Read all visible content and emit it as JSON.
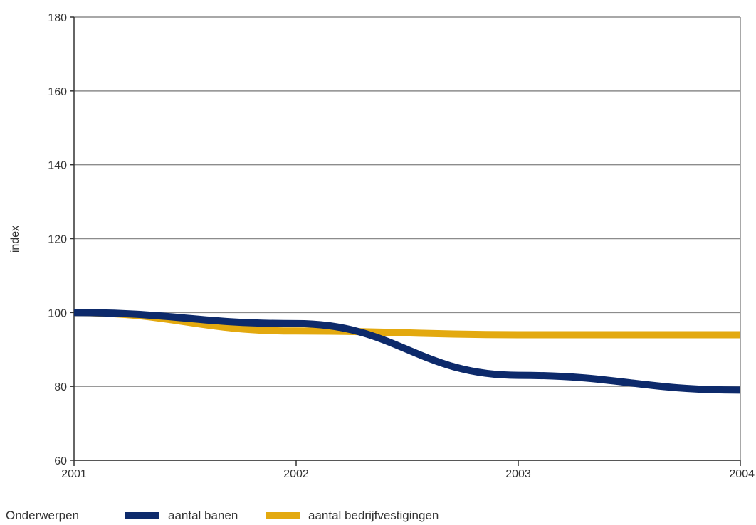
{
  "chart_data": {
    "type": "line",
    "title": "",
    "xlabel": "",
    "ylabel": "index",
    "x": [
      2001,
      2002,
      2003,
      2004
    ],
    "x_tick_labels": [
      "2001",
      "2002",
      "2003",
      "2004"
    ],
    "ylim": [
      60,
      180
    ],
    "y_ticks": [
      60,
      80,
      100,
      120,
      140,
      160,
      180
    ],
    "y_tick_labels": [
      "60",
      "80",
      "100",
      "120",
      "140",
      "160",
      "180"
    ],
    "grid": true,
    "series": [
      {
        "name": "aantal banen",
        "color": "#0d2a6b",
        "values": [
          100,
          97,
          83,
          79
        ]
      },
      {
        "name": "aantal bedrijfvestigingen",
        "color": "#e3a90f",
        "values": [
          100,
          95,
          94,
          94
        ]
      }
    ],
    "legend": {
      "title": "Onderwerpen",
      "placement": "bottom-left"
    }
  }
}
